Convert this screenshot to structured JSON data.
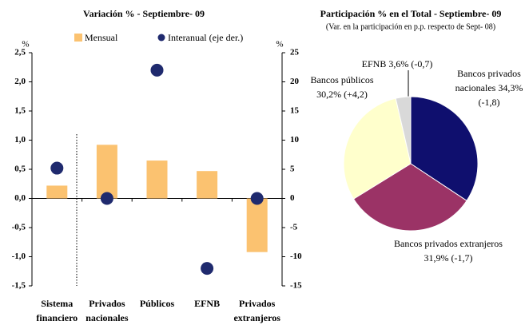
{
  "chart_data": [
    {
      "type": "combo",
      "title": "Variación % - Septiembre- 09",
      "y_label": "%",
      "y2_label": "%",
      "categories": [
        "Sistema financiero",
        "Privados nacionales",
        "Públicos",
        "EFNB",
        "Privados extranjeros"
      ],
      "series": [
        {
          "name": "Mensual",
          "kind": "bar",
          "color": "#fbc270",
          "values": [
            0.22,
            0.92,
            0.65,
            0.47,
            -0.92
          ]
        },
        {
          "name": "Interanual (eje der.)",
          "kind": "scatter",
          "axis": "y2",
          "color": "#1f2a6e",
          "values": [
            5.2,
            0.0,
            22.0,
            -12.0,
            0.0
          ]
        }
      ],
      "ylim": [
        -1.5,
        2.5
      ],
      "yticks": [
        {
          "value": -1.5,
          "label": "-1,5"
        },
        {
          "value": -1,
          "label": "-1,0"
        },
        {
          "value": -0.5,
          "label": "-0,5"
        },
        {
          "value": 0,
          "label": "0,0"
        },
        {
          "value": 0.5,
          "label": "0,5"
        },
        {
          "value": 1,
          "label": "1,0"
        },
        {
          "value": 1.5,
          "label": "1,5"
        },
        {
          "value": 2,
          "label": "2,0"
        },
        {
          "value": 2.5,
          "label": "2,5"
        }
      ],
      "y2lim": [
        -15,
        25
      ],
      "y2ticks": [
        -15,
        -10,
        -5,
        0,
        5,
        10,
        15,
        20,
        25
      ]
    },
    {
      "type": "pie",
      "title": "Participación % en el Total - Septiembre- 09",
      "subtitle": "(Var. en la participación en p.p. respecto de Sept- 08)",
      "categories": [
        "Bancos privados nacionales",
        "Bancos privados extranjeros",
        "Bancos públicos",
        "EFNB"
      ],
      "values": [
        34.3,
        31.9,
        30.2,
        3.6
      ],
      "value_labels": [
        "34,3%",
        "31,9%",
        "30,2%",
        "3,6%"
      ],
      "changes": [
        -1.8,
        -1.7,
        4.2,
        -0.7
      ],
      "change_labels": [
        "(-1,8)",
        "(-1,7)",
        "(+4,2)",
        "(-0,7)"
      ],
      "colors": [
        "#0f0f6e",
        "#9b3366",
        "#ffffcc",
        "#d9d9d9"
      ]
    }
  ]
}
